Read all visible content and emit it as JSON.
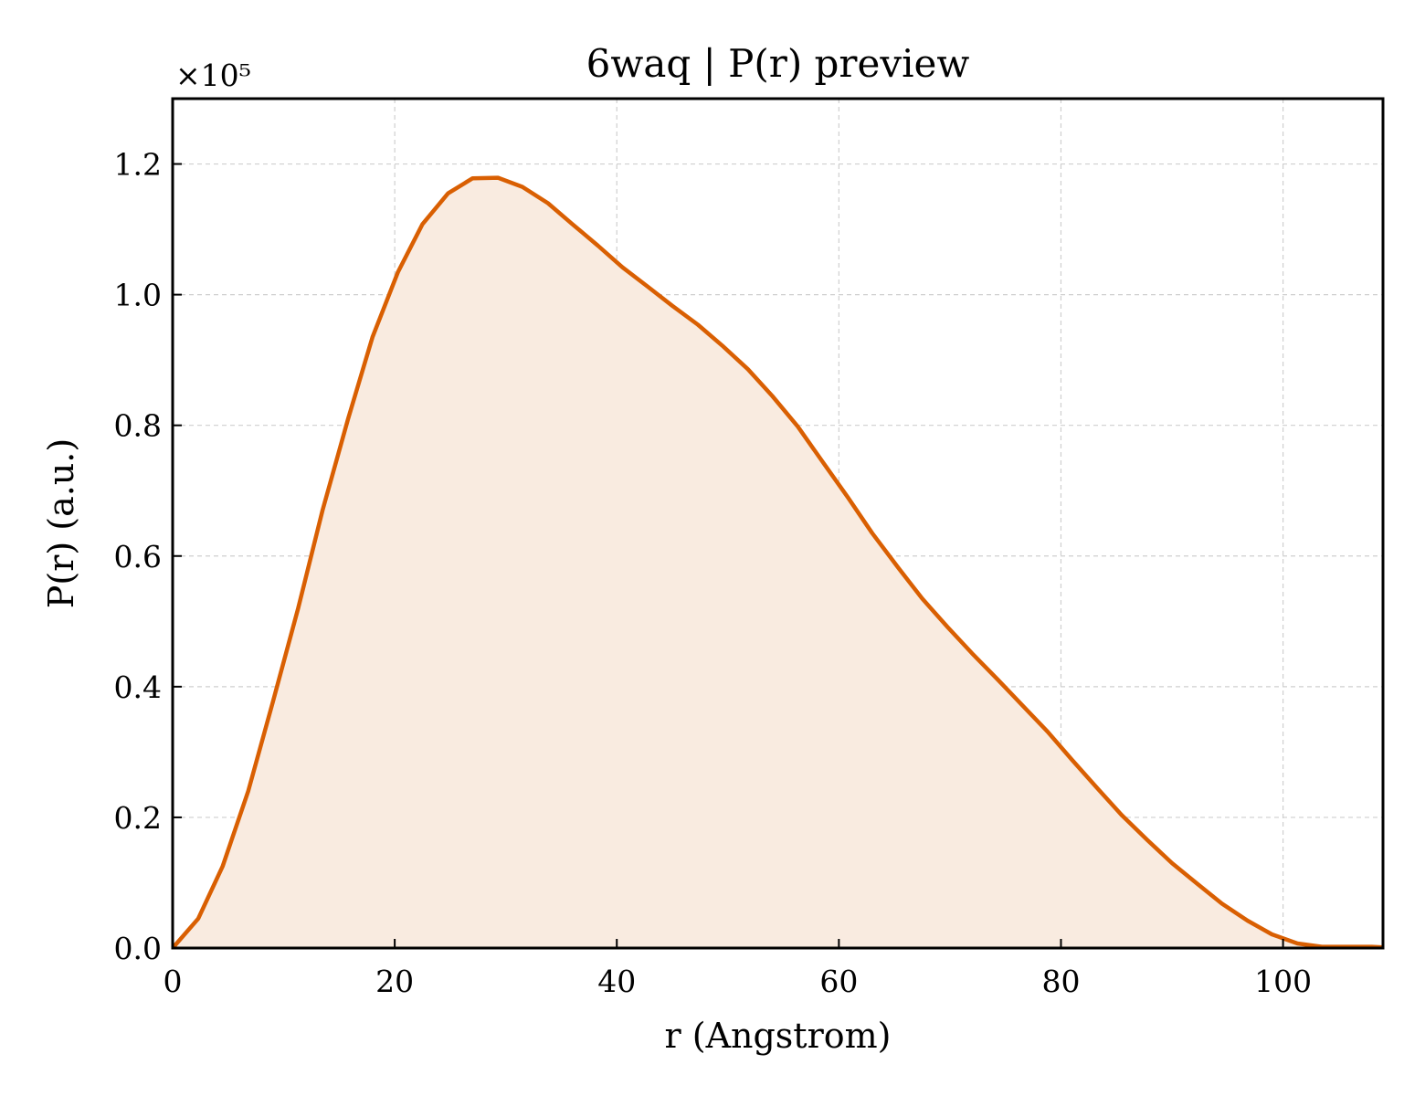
{
  "chart_data": {
    "type": "area",
    "title": "6waq | P(r) preview",
    "xlabel": "r (Angstrom)",
    "ylabel": "P(r) (a.u.)",
    "y_multiplier": "×10⁵",
    "xlim": [
      0,
      109
    ],
    "ylim": [
      0,
      1.3
    ],
    "x_ticks": [
      0,
      20,
      40,
      60,
      80,
      100
    ],
    "y_ticks": [
      0.0,
      0.2,
      0.4,
      0.6,
      0.8,
      1.0,
      1.2
    ],
    "x_tick_labels": [
      "0",
      "20",
      "40",
      "60",
      "80",
      "100"
    ],
    "y_tick_labels": [
      "0.0",
      "0.2",
      "0.4",
      "0.6",
      "0.8",
      "1.0",
      "1.2"
    ],
    "grid": true,
    "series": [
      {
        "color": "#d95f02",
        "fill_color": "#f9ebe0",
        "x": [
          0,
          2.3,
          4.5,
          6.8,
          9.0,
          11.3,
          13.5,
          15.8,
          18.0,
          20.3,
          22.5,
          24.8,
          27.0,
          29.3,
          31.5,
          33.8,
          36.0,
          38.3,
          40.5,
          42.8,
          45.0,
          47.3,
          49.5,
          51.8,
          54.0,
          56.3,
          58.5,
          60.8,
          63.0,
          65.3,
          67.5,
          69.8,
          72.0,
          74.3,
          76.5,
          78.8,
          81.0,
          83.3,
          85.5,
          87.8,
          90.0,
          92.3,
          94.5,
          96.8,
          99.0,
          101.3,
          103.5,
          105.8,
          108.0,
          109.0
        ],
        "y": [
          0.0,
          0.045,
          0.125,
          0.24,
          0.375,
          0.52,
          0.67,
          0.81,
          0.935,
          1.035,
          1.108,
          1.155,
          1.178,
          1.179,
          1.165,
          1.14,
          1.108,
          1.075,
          1.042,
          1.012,
          0.983,
          0.954,
          0.922,
          0.886,
          0.845,
          0.798,
          0.745,
          0.69,
          0.635,
          0.583,
          0.535,
          0.491,
          0.451,
          0.411,
          0.372,
          0.331,
          0.288,
          0.244,
          0.203,
          0.165,
          0.13,
          0.098,
          0.068,
          0.042,
          0.021,
          0.007,
          0.002,
          0.002,
          0.002,
          0.001
        ]
      }
    ]
  }
}
